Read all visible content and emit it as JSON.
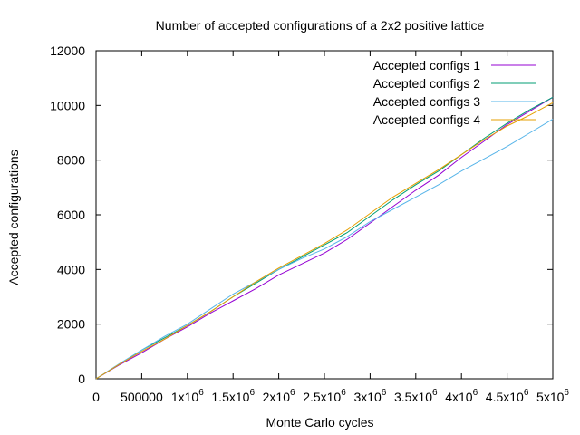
{
  "chart_data": {
    "type": "line",
    "title": "Number of accepted configurations of a 2x2 positive lattice",
    "xlabel": "Monte Carlo cycles",
    "ylabel": "Accepted configurations",
    "xlim": [
      0,
      5000000
    ],
    "ylim": [
      0,
      12000
    ],
    "legend_position": "top-right",
    "grid": false,
    "y_ticks": [
      {
        "value": 0,
        "label": "0"
      },
      {
        "value": 2000,
        "label": "2000"
      },
      {
        "value": 4000,
        "label": "4000"
      },
      {
        "value": 6000,
        "label": "6000"
      },
      {
        "value": 8000,
        "label": "8000"
      },
      {
        "value": 10000,
        "label": "10000"
      },
      {
        "value": 12000,
        "label": "12000"
      }
    ],
    "x_ticks": [
      {
        "value": 0,
        "label": "0",
        "sup": ""
      },
      {
        "value": 500000,
        "label": "500000",
        "sup": ""
      },
      {
        "value": 1000000,
        "label": "1x10",
        "sup": "6"
      },
      {
        "value": 1500000,
        "label": "1.5x10",
        "sup": "6"
      },
      {
        "value": 2000000,
        "label": "2x10",
        "sup": "6"
      },
      {
        "value": 2500000,
        "label": "2.5x10",
        "sup": "6"
      },
      {
        "value": 3000000,
        "label": "3x10",
        "sup": "6"
      },
      {
        "value": 3500000,
        "label": "3.5x10",
        "sup": "6"
      },
      {
        "value": 4000000,
        "label": "4x10",
        "sup": "6"
      },
      {
        "value": 4500000,
        "label": "4.5x10",
        "sup": "6"
      },
      {
        "value": 5000000,
        "label": "5x10",
        "sup": "6"
      }
    ],
    "x": [
      0,
      250000,
      500000,
      750000,
      1000000,
      1250000,
      1500000,
      1750000,
      2000000,
      2250000,
      2500000,
      2750000,
      3000000,
      3250000,
      3500000,
      3750000,
      4000000,
      4250000,
      4500000,
      4750000,
      5000000
    ],
    "series": [
      {
        "name": "Accepted configs 1",
        "color": "#9400d3",
        "values": [
          0,
          500,
          950,
          1450,
          1900,
          2400,
          2850,
          3300,
          3800,
          4200,
          4600,
          5100,
          5700,
          6300,
          6900,
          7450,
          8100,
          8700,
          9300,
          9800,
          10300
        ]
      },
      {
        "name": "Accepted configs 2",
        "color": "#009e73",
        "values": [
          0,
          520,
          1050,
          1500,
          1950,
          2450,
          3000,
          3500,
          4000,
          4450,
          4900,
          5350,
          5950,
          6550,
          7100,
          7600,
          8200,
          8800,
          9350,
          9850,
          10300
        ]
      },
      {
        "name": "Accepted configs 3",
        "color": "#56b4e9",
        "values": [
          0,
          540,
          1050,
          1550,
          2000,
          2550,
          3100,
          3550,
          4000,
          4400,
          4750,
          5200,
          5750,
          6200,
          6650,
          7100,
          7600,
          8050,
          8500,
          9000,
          9500
        ]
      },
      {
        "name": "Accepted configs 4",
        "color": "#e69f00",
        "values": [
          0,
          520,
          1000,
          1450,
          1950,
          2450,
          3000,
          3550,
          4050,
          4500,
          4950,
          5450,
          6050,
          6650,
          7150,
          7650,
          8200,
          8750,
          9250,
          9650,
          10100
        ]
      }
    ]
  }
}
